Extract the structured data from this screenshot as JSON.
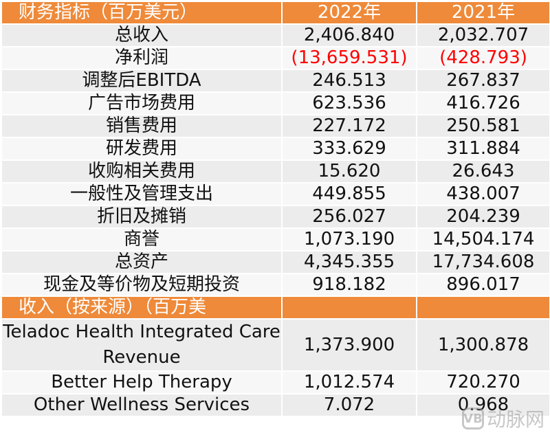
{
  "header": {
    "metric_label": "财务指标（百万美元）",
    "year_2022": "2022年",
    "year_2021": "2021年"
  },
  "financials": [
    {
      "metric": "总收入",
      "y2022": "2,406.840",
      "y2021": "2,032.707"
    },
    {
      "metric": "净利润",
      "y2022": "(13,659.531)",
      "y2021": "(428.793)"
    },
    {
      "metric": "调整后EBITDA",
      "y2022": "246.513",
      "y2021": "267.837"
    },
    {
      "metric": "广告市场费用",
      "y2022": "623.536",
      "y2021": "416.726"
    },
    {
      "metric": "销售费用",
      "y2022": "227.172",
      "y2021": "250.581"
    },
    {
      "metric": "研发费用",
      "y2022": "333.629",
      "y2021": "311.884"
    },
    {
      "metric": "收购相关费用",
      "y2022": "15.620",
      "y2021": "26.643"
    },
    {
      "metric": "一般性及管理支出",
      "y2022": "449.855",
      "y2021": "438.007"
    },
    {
      "metric": "折旧及摊销",
      "y2022": "256.027",
      "y2021": "204.239"
    },
    {
      "metric": "商誉",
      "y2022": "1,073.190",
      "y2021": "14,504.174"
    },
    {
      "metric": "总资产",
      "y2022": "4,345.355",
      "y2021": "17,734.608"
    },
    {
      "metric": "现金及等价物及短期投资",
      "y2022": "918.182",
      "y2021": "896.017"
    }
  ],
  "revenue_header": {
    "label": "收入（按来源）（百万美",
    "col2": "",
    "col3": ""
  },
  "revenue": [
    {
      "source": "Teladoc Health Integrated Care Revenue",
      "y2022": "1,373.900",
      "y2021": "1,300.878"
    },
    {
      "source": "Better Help Therapy",
      "y2022": "1,012.574",
      "y2021": "720.270"
    },
    {
      "source": "Other Wellness Services",
      "y2022": "7.072",
      "y2021": "0.968"
    }
  ],
  "watermark": {
    "logo_text": "VB",
    "text": "动脉网"
  },
  "colors": {
    "header_bg": "#ee8a3a",
    "negative": "#ff0000",
    "row_odd": "#ececec",
    "row_even": "#f7f7f7"
  }
}
